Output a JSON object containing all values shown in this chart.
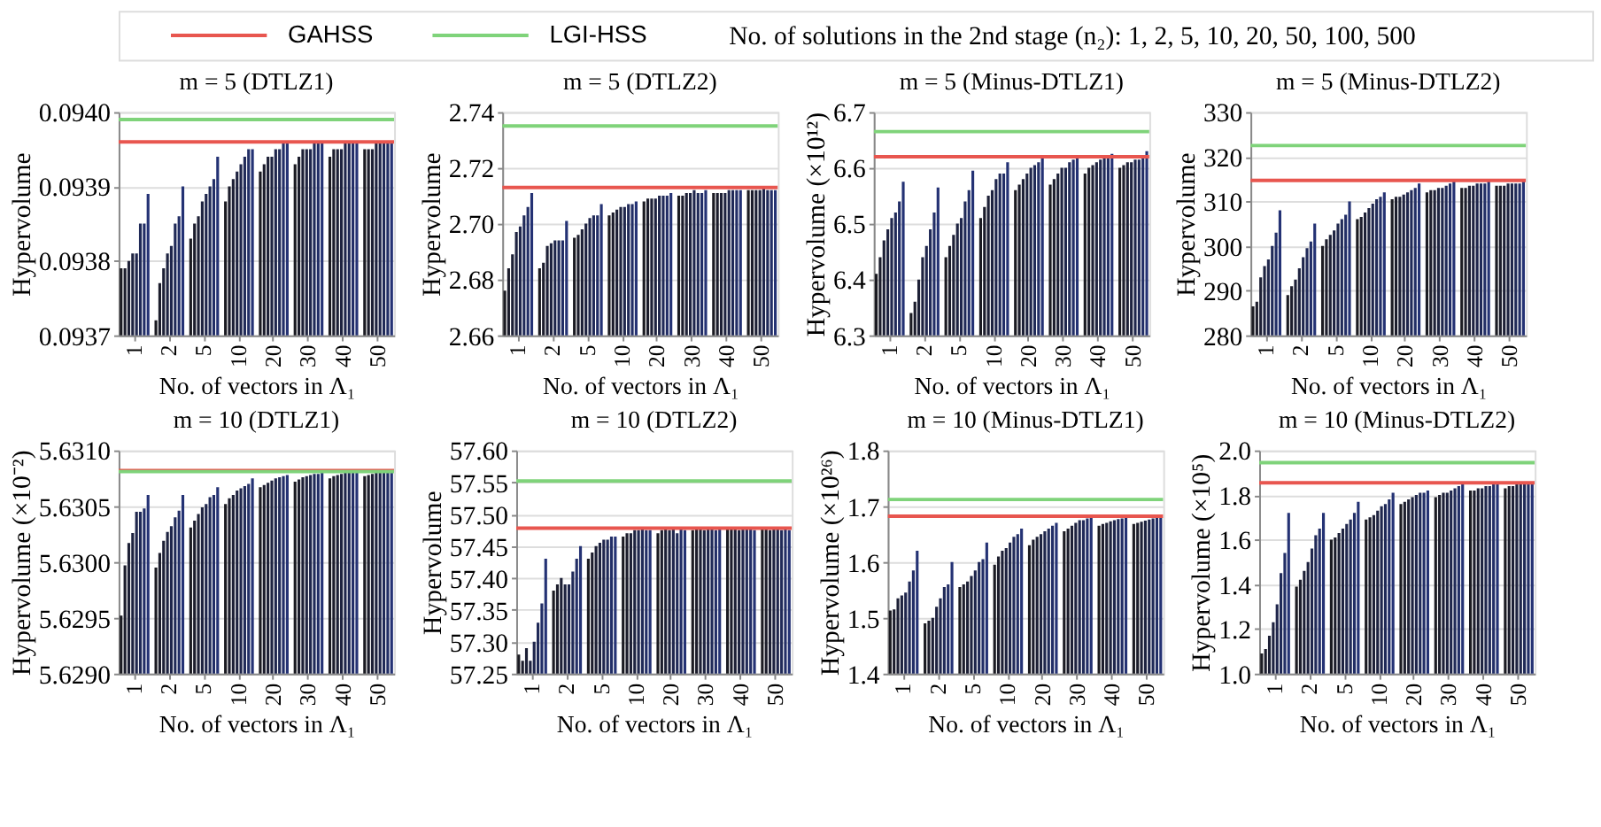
{
  "chart_data": [
    {
      "type": "bar",
      "title": "m = 5 (DTLZ1)",
      "xlabel": "No. of vectors in Λ₁",
      "ylabel": "Hypervolume",
      "legend_title": "No. of solutions in the 2nd stage (n₂): 1, 2, 5, 10, 20, 50, 100, 500",
      "legend": "top",
      "grid": "y",
      "categories": [
        "1",
        "2",
        "5",
        "10",
        "20",
        "30",
        "40",
        "50"
      ],
      "ylim": [
        0.0937,
        0.094
      ],
      "yticks": [
        0.0937,
        0.0938,
        0.0939,
        {
          "value": 0.094,
          "label": "0.0940"
        }
      ],
      "ref_lines": [
        {
          "axis": "y",
          "value": 0.09396,
          "label": "GAHSS",
          "color": "#e8564f"
        },
        {
          "axis": "y",
          "value": 0.09399,
          "label": "LGI-HSS",
          "color": "#7fd37a"
        }
      ],
      "series": [
        {
          "color": "#1b1b22",
          "values": [
            0.09379,
            0.09372,
            0.09383,
            0.09388,
            0.09392,
            0.09393,
            0.09394,
            0.09395
          ]
        },
        {
          "color": "#1c1d2c",
          "values": [
            0.09379,
            0.09377,
            0.09385,
            0.0939,
            0.09393,
            0.09394,
            0.09395,
            0.09395
          ]
        },
        {
          "color": "#1d2036",
          "values": [
            0.0938,
            0.09379,
            0.09386,
            0.09391,
            0.09394,
            0.09395,
            0.09395,
            0.09395
          ]
        },
        {
          "color": "#1e2340",
          "values": [
            0.09381,
            0.09381,
            0.09388,
            0.09392,
            0.09394,
            0.09395,
            0.09395,
            0.09396
          ]
        },
        {
          "color": "#1f264c",
          "values": [
            0.09381,
            0.09382,
            0.09389,
            0.09393,
            0.09395,
            0.09395,
            0.09396,
            0.09396
          ]
        },
        {
          "color": "#202a58",
          "values": [
            0.09385,
            0.09385,
            0.0939,
            0.09394,
            0.09395,
            0.09396,
            0.09396,
            0.09396
          ]
        },
        {
          "color": "#222e66",
          "values": [
            0.09385,
            0.09386,
            0.09391,
            0.09395,
            0.09396,
            0.09396,
            0.09396,
            0.09396
          ]
        },
        {
          "color": "#243274",
          "values": [
            0.09389,
            0.0939,
            0.09394,
            0.09395,
            0.09396,
            0.09396,
            0.09396,
            0.09396
          ]
        }
      ]
    },
    {
      "type": "bar",
      "title": "m = 5 (DTLZ2)",
      "xlabel": "No. of vectors in Λ₁",
      "ylabel": "Hypervolume",
      "grid": "y",
      "categories": [
        "1",
        "2",
        "5",
        "10",
        "20",
        "30",
        "40",
        "50"
      ],
      "ylim": [
        2.66,
        2.74
      ],
      "yticks": [
        2.66,
        2.68,
        {
          "value": 2.7,
          "label": "2.70"
        },
        2.72,
        2.74
      ],
      "ref_lines": [
        {
          "axis": "y",
          "value": 2.713,
          "color": "#e8564f"
        },
        {
          "axis": "y",
          "value": 2.735,
          "color": "#7fd37a"
        }
      ],
      "series": [
        {
          "color": "#1b1b22",
          "values": [
            2.676,
            2.684,
            2.695,
            2.703,
            2.708,
            2.71,
            2.711,
            2.712
          ]
        },
        {
          "color": "#1c1d2c",
          "values": [
            2.684,
            2.686,
            2.696,
            2.704,
            2.709,
            2.71,
            2.711,
            2.712
          ]
        },
        {
          "color": "#1d2036",
          "values": [
            2.689,
            2.692,
            2.698,
            2.705,
            2.709,
            2.711,
            2.711,
            2.712
          ]
        },
        {
          "color": "#1e2340",
          "values": [
            2.697,
            2.693,
            2.7,
            2.706,
            2.709,
            2.711,
            2.711,
            2.712
          ]
        },
        {
          "color": "#1f264c",
          "values": [
            2.699,
            2.694,
            2.702,
            2.706,
            2.71,
            2.712,
            2.712,
            2.713
          ]
        },
        {
          "color": "#202a58",
          "values": [
            2.703,
            2.694,
            2.703,
            2.707,
            2.71,
            2.711,
            2.712,
            2.712
          ]
        },
        {
          "color": "#222e66",
          "values": [
            2.706,
            2.694,
            2.703,
            2.707,
            2.71,
            2.711,
            2.712,
            2.712
          ]
        },
        {
          "color": "#243274",
          "values": [
            2.711,
            2.701,
            2.707,
            2.708,
            2.711,
            2.712,
            2.712,
            2.712
          ]
        }
      ]
    },
    {
      "type": "bar",
      "title": "m = 5 (Minus-DTLZ1)",
      "xlabel": "No. of vectors in Λ₁",
      "ylabel": "Hypervolume (×10¹²)",
      "grid": "y",
      "categories": [
        "1",
        "2",
        "5",
        "10",
        "20",
        "30",
        "40",
        "50"
      ],
      "ylim": [
        6.3,
        6.7
      ],
      "yticks": [
        6.3,
        6.4,
        6.5,
        6.6,
        6.7
      ],
      "ref_lines": [
        {
          "axis": "y",
          "value": 6.62,
          "color": "#e8564f"
        },
        {
          "axis": "y",
          "value": 6.665,
          "color": "#7fd37a"
        }
      ],
      "series": [
        {
          "color": "#1b1b22",
          "values": [
            6.41,
            6.34,
            6.44,
            6.51,
            6.56,
            6.57,
            6.59,
            6.6
          ]
        },
        {
          "color": "#1c1d2c",
          "values": [
            6.44,
            6.36,
            6.46,
            6.53,
            6.57,
            6.58,
            6.6,
            6.605
          ]
        },
        {
          "color": "#1d2036",
          "values": [
            6.47,
            6.4,
            6.48,
            6.55,
            6.58,
            6.59,
            6.605,
            6.61
          ]
        },
        {
          "color": "#1e2340",
          "values": [
            6.49,
            6.44,
            6.5,
            6.56,
            6.59,
            6.6,
            6.61,
            6.61
          ]
        },
        {
          "color": "#1f264c",
          "values": [
            6.51,
            6.46,
            6.51,
            6.58,
            6.6,
            6.6,
            6.615,
            6.615
          ]
        },
        {
          "color": "#202a58",
          "values": [
            6.52,
            6.49,
            6.54,
            6.59,
            6.605,
            6.61,
            6.62,
            6.615
          ]
        },
        {
          "color": "#222e66",
          "values": [
            6.54,
            6.52,
            6.56,
            6.59,
            6.61,
            6.615,
            6.62,
            6.62
          ]
        },
        {
          "color": "#243274",
          "values": [
            6.575,
            6.565,
            6.595,
            6.61,
            6.62,
            6.62,
            6.625,
            6.63
          ]
        }
      ]
    },
    {
      "type": "bar",
      "title": "m = 5 (Minus-DTLZ2)",
      "xlabel": "No. of vectors in Λ₁",
      "ylabel": "Hypervolume",
      "grid": "y",
      "categories": [
        "1",
        "2",
        "5",
        "10",
        "20",
        "30",
        "40",
        "50"
      ],
      "ylim": [
        280,
        330
      ],
      "yticks": [
        280,
        290,
        300,
        310,
        320,
        330
      ],
      "ref_lines": [
        {
          "axis": "y",
          "value": 314.7,
          "color": "#e8564f"
        },
        {
          "axis": "y",
          "value": 322.5,
          "color": "#7fd37a"
        }
      ],
      "series": [
        {
          "color": "#1b1b22",
          "values": [
            286.5,
            289,
            300,
            306,
            310.5,
            312,
            313,
            313.5
          ]
        },
        {
          "color": "#1c1d2c",
          "values": [
            287.5,
            291,
            301.5,
            306.5,
            311,
            312.5,
            313,
            313.5
          ]
        },
        {
          "color": "#1d2036",
          "values": [
            293,
            292.5,
            302.5,
            307.5,
            311,
            312.5,
            313.5,
            313.5
          ]
        },
        {
          "color": "#1e2340",
          "values": [
            295.5,
            295,
            303.5,
            308.5,
            311.5,
            313,
            313.5,
            314
          ]
        },
        {
          "color": "#1f264c",
          "values": [
            297,
            297.5,
            305,
            309.5,
            312,
            313,
            314,
            314
          ]
        },
        {
          "color": "#202a58",
          "values": [
            300,
            299.5,
            306,
            310.5,
            312.5,
            313.5,
            314,
            314
          ]
        },
        {
          "color": "#222e66",
          "values": [
            303,
            301,
            307,
            311,
            313,
            314,
            314,
            314
          ]
        },
        {
          "color": "#243274",
          "values": [
            308,
            305,
            310,
            312,
            314,
            314.5,
            314.5,
            314.5
          ]
        }
      ]
    },
    {
      "type": "bar",
      "title": "m = 10 (DTLZ1)",
      "xlabel": "No. of vectors in Λ₁",
      "ylabel": "Hypervolume (×10⁻²)",
      "grid": "y",
      "categories": [
        "1",
        "2",
        "5",
        "10",
        "20",
        "30",
        "40",
        "50"
      ],
      "ylim": [
        5.629,
        5.631
      ],
      "yticks": [
        {
          "value": 5.629,
          "label": "5.6290"
        },
        5.6295,
        {
          "value": 5.63,
          "label": "5.6300"
        },
        5.6305,
        {
          "value": 5.631,
          "label": "5.6310"
        }
      ],
      "ref_lines": [
        {
          "axis": "y",
          "value": 5.63082,
          "color": "#e8564f"
        },
        {
          "axis": "y",
          "value": 5.63081,
          "color": "#7fd37a"
        }
      ],
      "series": [
        {
          "color": "#1b1b22",
          "values": [
            5.62952,
            5.62995,
            5.63031,
            5.63052,
            5.63067,
            5.63072,
            5.63075,
            5.63077
          ]
        },
        {
          "color": "#1c1d2c",
          "values": [
            5.62997,
            5.63008,
            5.63037,
            5.63057,
            5.63069,
            5.63074,
            5.63077,
            5.63078
          ]
        },
        {
          "color": "#1d2036",
          "values": [
            5.63017,
            5.63019,
            5.63043,
            5.6306,
            5.63071,
            5.63076,
            5.63078,
            5.63079
          ]
        },
        {
          "color": "#1e2340",
          "values": [
            5.63026,
            5.63027,
            5.63049,
            5.63064,
            5.63073,
            5.63077,
            5.63079,
            5.6308
          ]
        },
        {
          "color": "#1f264c",
          "values": [
            5.63045,
            5.63032,
            5.63052,
            5.63066,
            5.63075,
            5.63078,
            5.6308,
            5.6308
          ]
        },
        {
          "color": "#202a58",
          "values": [
            5.63045,
            5.6304,
            5.63058,
            5.63068,
            5.63076,
            5.63079,
            5.6308,
            5.63081
          ]
        },
        {
          "color": "#222e66",
          "values": [
            5.63048,
            5.63046,
            5.6306,
            5.6307,
            5.63077,
            5.63079,
            5.63081,
            5.63081
          ]
        },
        {
          "color": "#243274",
          "values": [
            5.6306,
            5.6306,
            5.63067,
            5.63075,
            5.63078,
            5.6308,
            5.63081,
            5.63081
          ]
        }
      ]
    },
    {
      "type": "bar",
      "title": "m = 10 (DTLZ2)",
      "xlabel": "No. of vectors in Λ₁",
      "ylabel": "Hypervolume",
      "grid": "y",
      "categories": [
        "1",
        "2",
        "5",
        "10",
        "20",
        "30",
        "40",
        "50"
      ],
      "ylim": [
        57.25,
        57.6
      ],
      "yticks": [
        {
          "value": 57.25,
          "label": "57.25"
        },
        {
          "value": 57.3,
          "label": "57.30"
        },
        57.35,
        {
          "value": 57.4,
          "label": "57.40"
        },
        57.45,
        {
          "value": 57.5,
          "label": "57.50"
        },
        57.55,
        {
          "value": 57.6,
          "label": "57.60"
        }
      ],
      "ref_lines": [
        {
          "axis": "y",
          "value": 57.478,
          "color": "#e8564f"
        },
        {
          "axis": "y",
          "value": 57.552,
          "color": "#7fd37a"
        }
      ],
      "series": [
        {
          "color": "#1b1b22",
          "values": [
            57.28,
            57.38,
            57.43,
            57.465,
            57.47,
            57.475,
            57.48,
            57.48
          ]
        },
        {
          "color": "#1c1d2c",
          "values": [
            57.27,
            57.39,
            57.44,
            57.47,
            57.475,
            57.48,
            57.48,
            57.48
          ]
        },
        {
          "color": "#1d2036",
          "values": [
            57.29,
            57.4,
            57.45,
            57.47,
            57.48,
            57.48,
            57.48,
            57.475
          ]
        },
        {
          "color": "#1e2340",
          "values": [
            57.27,
            57.39,
            57.455,
            57.475,
            57.475,
            57.475,
            57.475,
            57.48
          ]
        },
        {
          "color": "#1f264c",
          "values": [
            57.3,
            57.39,
            57.46,
            57.475,
            57.48,
            57.48,
            57.48,
            57.48
          ]
        },
        {
          "color": "#202a58",
          "values": [
            57.33,
            57.41,
            57.46,
            57.48,
            57.47,
            57.48,
            57.48,
            57.475
          ]
        },
        {
          "color": "#222e66",
          "values": [
            57.36,
            57.43,
            57.465,
            57.475,
            57.48,
            57.475,
            57.48,
            57.48
          ]
        },
        {
          "color": "#243274",
          "values": [
            57.43,
            57.45,
            57.465,
            57.475,
            57.475,
            57.48,
            57.475,
            57.475
          ]
        }
      ]
    },
    {
      "type": "bar",
      "title": "m = 10 (Minus-DTLZ1)",
      "xlabel": "No. of vectors in Λ₁",
      "ylabel": "Hypervolume (×10²⁶)",
      "grid": "y",
      "categories": [
        "1",
        "2",
        "5",
        "10",
        "20",
        "30",
        "40",
        "50"
      ],
      "ylim": [
        1.4,
        1.8
      ],
      "yticks": [
        1.4,
        1.5,
        1.6,
        1.7,
        1.8
      ],
      "ref_lines": [
        {
          "axis": "y",
          "value": 1.682,
          "color": "#e8564f"
        },
        {
          "axis": "y",
          "value": 1.712,
          "color": "#7fd37a"
        }
      ],
      "series": [
        {
          "color": "#1b1b22",
          "values": [
            1.513,
            1.49,
            1.555,
            1.595,
            1.63,
            1.655,
            1.665,
            1.668
          ]
        },
        {
          "color": "#1c1d2c",
          "values": [
            1.515,
            1.495,
            1.56,
            1.61,
            1.64,
            1.66,
            1.668,
            1.67
          ]
        },
        {
          "color": "#1d2036",
          "values": [
            1.535,
            1.5,
            1.565,
            1.62,
            1.645,
            1.665,
            1.67,
            1.672
          ]
        },
        {
          "color": "#1e2340",
          "values": [
            1.54,
            1.52,
            1.575,
            1.625,
            1.65,
            1.67,
            1.673,
            1.674
          ]
        },
        {
          "color": "#1f264c",
          "values": [
            1.545,
            1.535,
            1.585,
            1.635,
            1.655,
            1.675,
            1.675,
            1.676
          ]
        },
        {
          "color": "#202a58",
          "values": [
            1.565,
            1.555,
            1.6,
            1.645,
            1.66,
            1.675,
            1.677,
            1.678
          ]
        },
        {
          "color": "#222e66",
          "values": [
            1.585,
            1.56,
            1.605,
            1.65,
            1.665,
            1.678,
            1.678,
            1.679
          ]
        },
        {
          "color": "#243274",
          "values": [
            1.62,
            1.6,
            1.635,
            1.66,
            1.67,
            1.68,
            1.68,
            1.682
          ]
        }
      ]
    },
    {
      "type": "bar",
      "title": "m = 10 (Minus-DTLZ2)",
      "xlabel": "No. of vectors in Λ₁",
      "ylabel": "Hypervolume (×10⁵)",
      "grid": "y",
      "categories": [
        "1",
        "2",
        "5",
        "10",
        "20",
        "30",
        "40",
        "50"
      ],
      "ylim": [
        1.0,
        2.0
      ],
      "yticks": [
        {
          "value": 1.0,
          "label": "1.0"
        },
        1.2,
        1.4,
        1.6,
        1.8,
        {
          "value": 2.0,
          "label": "2.0"
        }
      ],
      "ref_lines": [
        {
          "axis": "y",
          "value": 1.855,
          "color": "#e8564f"
        },
        {
          "axis": "y",
          "value": 1.945,
          "color": "#7fd37a"
        }
      ],
      "series": [
        {
          "color": "#1b1b22",
          "values": [
            1.09,
            1.39,
            1.6,
            1.69,
            1.76,
            1.79,
            1.82,
            1.83
          ]
        },
        {
          "color": "#1c1d2c",
          "values": [
            1.11,
            1.42,
            1.61,
            1.7,
            1.77,
            1.8,
            1.82,
            1.84
          ]
        },
        {
          "color": "#1d2036",
          "values": [
            1.17,
            1.46,
            1.63,
            1.71,
            1.78,
            1.81,
            1.83,
            1.84
          ]
        },
        {
          "color": "#1e2340",
          "values": [
            1.23,
            1.5,
            1.65,
            1.73,
            1.79,
            1.81,
            1.83,
            1.85
          ]
        },
        {
          "color": "#1f264c",
          "values": [
            1.31,
            1.56,
            1.67,
            1.75,
            1.8,
            1.82,
            1.84,
            1.85
          ]
        },
        {
          "color": "#202a58",
          "values": [
            1.45,
            1.62,
            1.69,
            1.76,
            1.81,
            1.83,
            1.84,
            1.85
          ]
        },
        {
          "color": "#222e66",
          "values": [
            1.54,
            1.65,
            1.72,
            1.78,
            1.81,
            1.84,
            1.85,
            1.85
          ]
        },
        {
          "color": "#243274",
          "values": [
            1.72,
            1.72,
            1.77,
            1.81,
            1.82,
            1.85,
            1.85,
            1.86
          ]
        }
      ]
    }
  ]
}
